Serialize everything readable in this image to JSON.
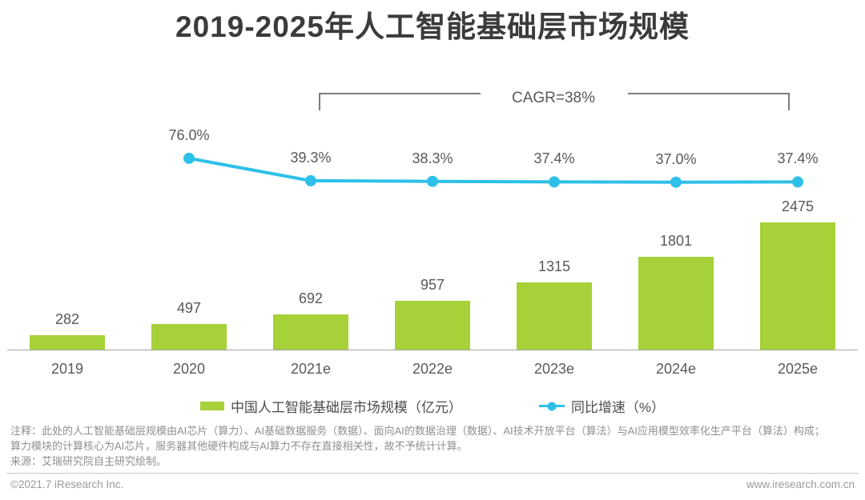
{
  "chart_data": {
    "type": "bar",
    "title": "2019-2025年人工智能基础层市场规模",
    "annotation": "CAGR=38%",
    "categories": [
      "2019",
      "2020",
      "2021e",
      "2022e",
      "2023e",
      "2024e",
      "2025e"
    ],
    "series": [
      {
        "name": "中国人工智能基础层市场规模（亿元）",
        "type": "bar",
        "color": "#A6D139",
        "values": [
          282,
          497,
          692,
          957,
          1315,
          1801,
          2475
        ]
      },
      {
        "name": "同比增速（%）",
        "type": "line",
        "color": "#2EC0E8",
        "x_categories": [
          "2020",
          "2021e",
          "2022e",
          "2023e",
          "2024e",
          "2025e"
        ],
        "values": [
          76.0,
          39.3,
          38.3,
          37.4,
          37.0,
          37.4
        ],
        "value_labels": [
          "76.0%",
          "39.3%",
          "38.3%",
          "37.4%",
          "37.0%",
          "37.4%"
        ]
      }
    ],
    "ylim": [
      0,
      2600
    ],
    "grid": false,
    "legend_position": "bottom"
  },
  "notes": {
    "line1": "注释：此处的人工智能基础层规模由AI芯片（算力）、AI基础数据服务（数据）、面向AI的数据治理（数据）、AI技术开放平台（算法）与AI应用模型效率化生产平台（算法）构成；",
    "line2": "算力模块的计算核心为AI芯片，服务器其他硬件构成与AI算力不存在直接相关性，故不予统计计算。",
    "source": "来源：艾瑞研究院自主研究绘制。"
  },
  "footer": {
    "copyright": "©2021.7 iResearch Inc.",
    "website": "www.iresearch.com.cn"
  }
}
